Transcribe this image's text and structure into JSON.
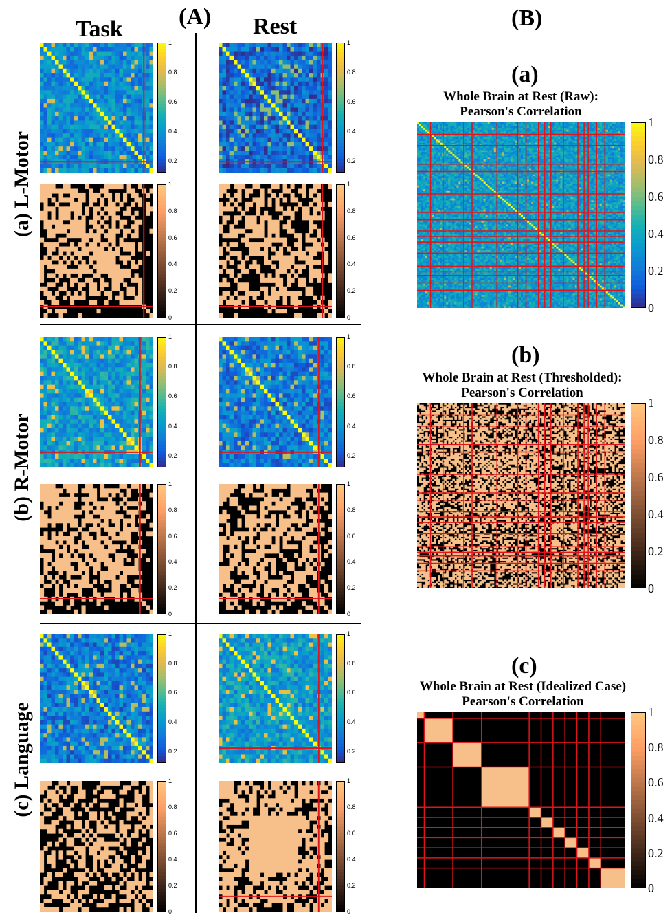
{
  "labels": {
    "A": "(A)",
    "B": "(B)",
    "task": "Task",
    "rest": "Rest",
    "row_a": "(a) L-Motor",
    "row_b": "(b) R-Motor",
    "row_c": "(c) Language",
    "ba": "(a)",
    "bb": "(b)",
    "bc": "(c)"
  },
  "chart_data": [
    {
      "type": "heatmap",
      "title": "",
      "panel": "L-Motor / Task",
      "colormap": "parula",
      "matrix_size": 30,
      "value_range": [
        0.15,
        1
      ],
      "colorbar_ticks": [
        "1",
        "0.8",
        "0.6",
        "0.4",
        "0.2"
      ],
      "diagonal": 1,
      "typical_off_diagonal": 0.4,
      "thresholded": {
        "colormap": "copper",
        "colorbar_ticks": [
          "1",
          "0.8",
          "0.6",
          "0.4",
          "0.2",
          "0"
        ],
        "fraction_ones": 0.55
      },
      "red_line_index": 27
    },
    {
      "type": "heatmap",
      "title": "",
      "panel": "L-Motor / Rest",
      "colormap": "parula",
      "matrix_size": 30,
      "value_range": [
        0.15,
        1
      ],
      "colorbar_ticks": [
        "1",
        "0.8",
        "0.6",
        "0.4",
        "0.2"
      ],
      "diagonal": 1,
      "typical_off_diagonal": 0.3,
      "thresholded": {
        "colormap": "copper",
        "colorbar_ticks": [
          "1",
          "0.8",
          "0.6",
          "0.4",
          "0.2",
          "0"
        ],
        "fraction_ones": 0.5
      },
      "red_line_index": 27
    },
    {
      "type": "heatmap",
      "title": "",
      "panel": "R-Motor / Task",
      "colormap": "parula",
      "matrix_size": 30,
      "value_range": [
        0.15,
        1
      ],
      "colorbar_ticks": [
        "1",
        "0.8",
        "0.6",
        "0.4",
        "0.2"
      ],
      "diagonal": 1,
      "typical_off_diagonal": 0.45,
      "thresholded": {
        "colormap": "copper",
        "colorbar_ticks": [
          "1",
          "0.8",
          "0.6",
          "0.4",
          "0.2",
          "0"
        ],
        "fraction_ones": 0.6
      },
      "red_line_index": 26
    },
    {
      "type": "heatmap",
      "title": "",
      "panel": "R-Motor / Rest",
      "colormap": "parula",
      "matrix_size": 30,
      "value_range": [
        0.15,
        1
      ],
      "colorbar_ticks": [
        "1",
        "0.8",
        "0.6",
        "0.4",
        "0.2"
      ],
      "diagonal": 1,
      "typical_off_diagonal": 0.35,
      "thresholded": {
        "colormap": "copper",
        "colorbar_ticks": [
          "1",
          "0.8",
          "0.6",
          "0.4",
          "0.2",
          "0"
        ],
        "fraction_ones": 0.5
      },
      "red_line_index": 26
    },
    {
      "type": "heatmap",
      "title": "",
      "panel": "Language / Task",
      "colormap": "parula",
      "matrix_size": 30,
      "value_range": [
        0.15,
        1
      ],
      "colorbar_ticks": [
        "1",
        "0.8",
        "0.6",
        "0.4",
        "0.2"
      ],
      "diagonal": 1,
      "typical_off_diagonal": 0.35,
      "thresholded": {
        "colormap": "copper",
        "colorbar_ticks": [
          "1",
          "0.8",
          "0.6",
          "0.4",
          "0.2",
          "0"
        ],
        "fraction_ones": 0.45
      }
    },
    {
      "type": "heatmap",
      "title": "",
      "panel": "Language / Rest",
      "colormap": "parula",
      "matrix_size": 30,
      "value_range": [
        0.15,
        1
      ],
      "colorbar_ticks": [
        "1",
        "0.8",
        "0.6",
        "0.4",
        "0.2"
      ],
      "diagonal": 1,
      "typical_off_diagonal": 0.45,
      "thresholded": {
        "colormap": "copper",
        "colorbar_ticks": [
          "1",
          "0.8",
          "0.6",
          "0.4",
          "0.2",
          "0"
        ],
        "fraction_ones": 0.6
      },
      "red_line_index": 26
    },
    {
      "type": "heatmap",
      "title": "Whole Brain at Rest (Raw):\nPearson's Correlation",
      "colormap": "parula",
      "matrix_size": 200,
      "value_range": [
        -0.2,
        1
      ],
      "colorbar_ticks": [
        "1",
        "0.8",
        "0.6",
        "0.4",
        "0.2",
        "0"
      ],
      "diagonal": 1,
      "typical_off_diagonal": 0.25
    },
    {
      "type": "heatmap",
      "title": "Whole Brain at Rest (Thresholded):\nPearson's Correlation",
      "colormap": "copper",
      "matrix_size": 200,
      "value_range": [
        0,
        1
      ],
      "colorbar_ticks": [
        "1",
        "0.8",
        "0.6",
        "0.4",
        "0.2",
        "0"
      ],
      "fraction_ones": 0.5
    },
    {
      "type": "heatmap",
      "title": "Whole Brain at Rest (Idealized Case)\nPearson's Correlation",
      "colormap": "copper",
      "matrix_size": 200,
      "value_range": [
        0,
        1
      ],
      "colorbar_ticks": [
        "1",
        "0.8",
        "0.6",
        "0.4",
        "0.2",
        "0"
      ],
      "diagonal_blocks": [
        3,
        12,
        12,
        20,
        5,
        5,
        5,
        5,
        5,
        5,
        10
      ]
    }
  ]
}
